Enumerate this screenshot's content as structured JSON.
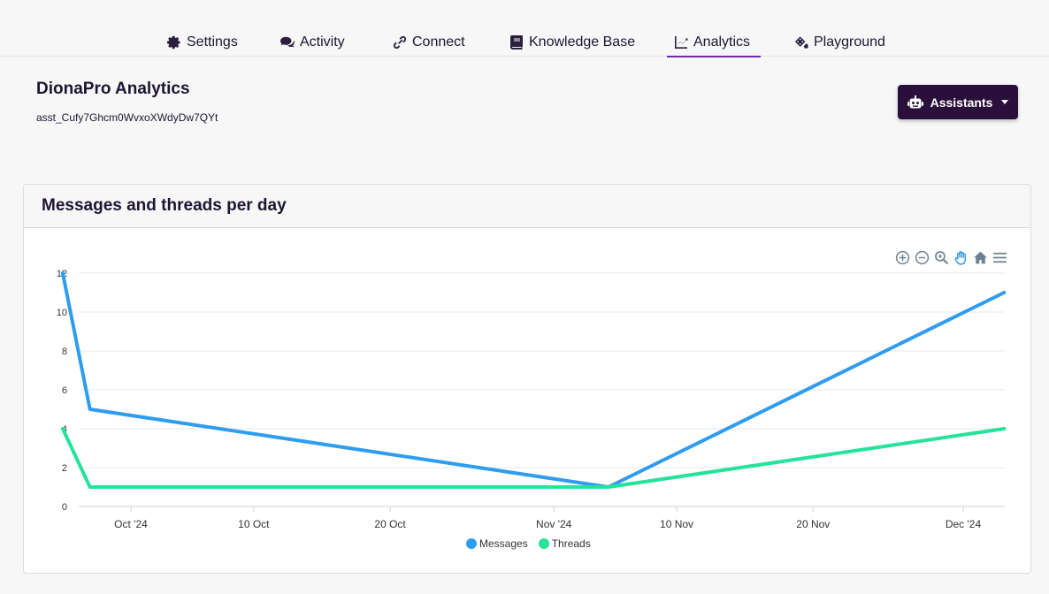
{
  "nav": {
    "tabs": [
      {
        "label": "Settings",
        "icon": "gear-icon"
      },
      {
        "label": "Activity",
        "icon": "chat-bubbles-icon"
      },
      {
        "label": "Connect",
        "icon": "link-icon"
      },
      {
        "label": "Knowledge Base",
        "icon": "book-icon"
      },
      {
        "label": "Analytics",
        "icon": "line-chart-icon",
        "active": true
      },
      {
        "label": "Playground",
        "icon": "dice-icon"
      }
    ]
  },
  "header": {
    "title": "DionaPro Analytics",
    "assistant_id": "asst_Cufy7Ghcm0WvxoXWdyDw7QYt",
    "assistants_button": "Assistants"
  },
  "card": {
    "title": "Messages and threads per day"
  },
  "colors": {
    "accent": "#6a2fa8",
    "button_bg": "#2a0f3a",
    "messages": "#2e9df0",
    "threads": "#26e39a"
  },
  "chart_data": {
    "type": "line",
    "x_tick_labels": [
      "Oct '24",
      "10 Oct",
      "20 Oct",
      "Nov '24",
      "10 Nov",
      "20 Nov",
      "Dec '24"
    ],
    "x_tick_dates": [
      "2024-10-01",
      "2024-10-10",
      "2024-10-20",
      "2024-11-01",
      "2024-11-10",
      "2024-11-20",
      "2024-12-01"
    ],
    "x": [
      "2024-09-26",
      "2024-09-28",
      "2024-11-05",
      "2024-12-04"
    ],
    "series": [
      {
        "name": "Messages",
        "values": [
          12,
          5,
          1,
          11
        ]
      },
      {
        "name": "Threads",
        "values": [
          4,
          1,
          1,
          4
        ]
      }
    ],
    "ylim": [
      0,
      12
    ],
    "y_ticks": [
      0,
      2,
      4,
      6,
      8,
      10,
      12
    ],
    "grid": true,
    "legend": "bottom"
  }
}
